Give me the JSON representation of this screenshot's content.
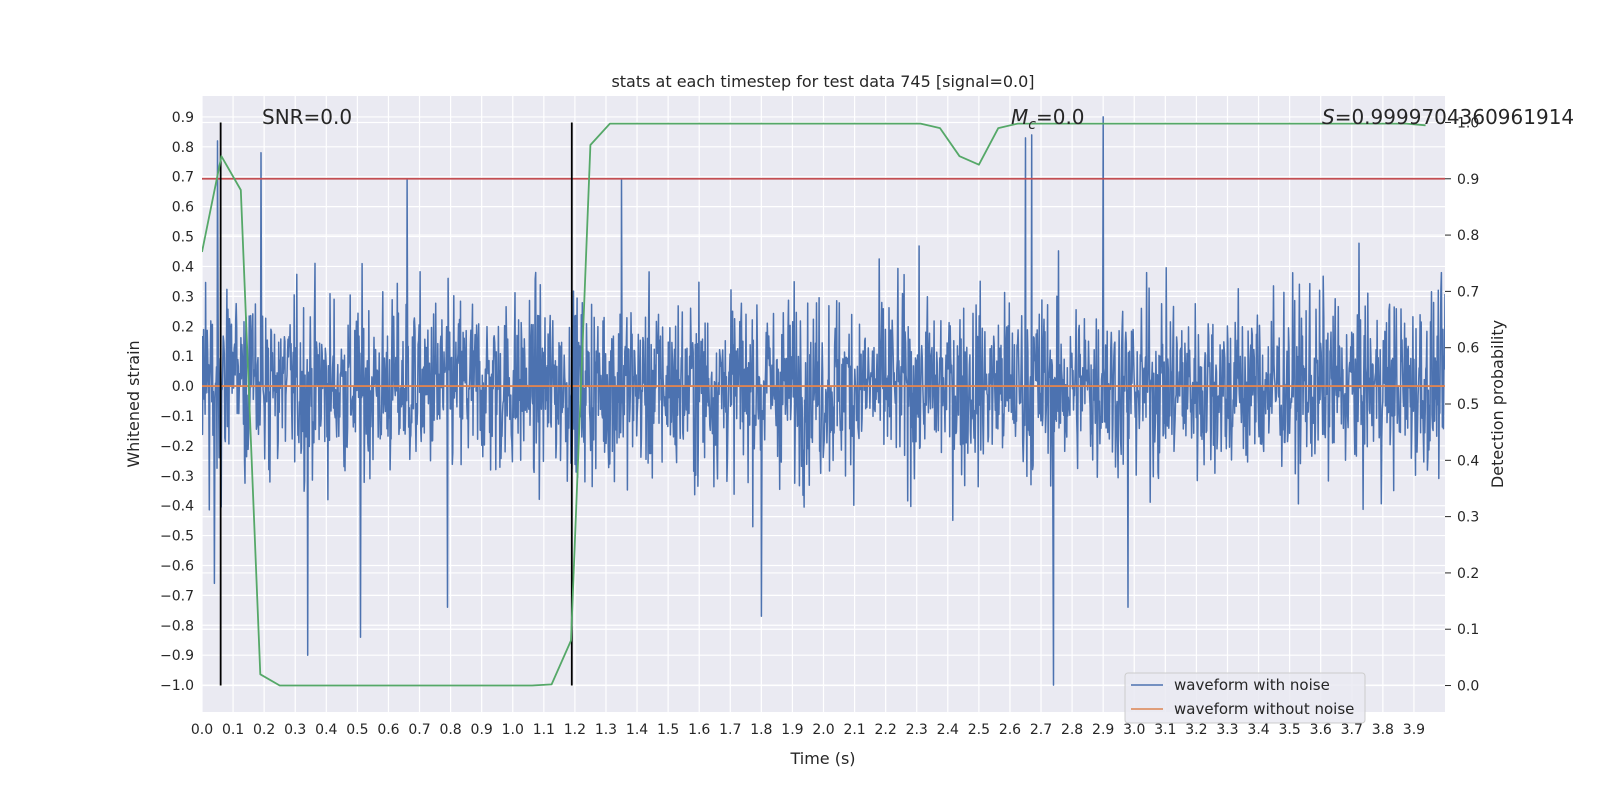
{
  "chart_data": {
    "type": "line",
    "title": "stats at each timestep for test data 745 [signal=0.0]",
    "xlabel": "Time (s)",
    "ylabel": "Whitened strain",
    "y2label": "Detection probability",
    "xlim": [
      0.0,
      4.0
    ],
    "ylim": [
      -1.09,
      0.97
    ],
    "y2lim": [
      -0.047,
      1.047
    ],
    "grid": true,
    "x_ticks": [
      "0.0",
      "0.1",
      "0.2",
      "0.3",
      "0.4",
      "0.5",
      "0.6",
      "0.7",
      "0.8",
      "0.9",
      "1.0",
      "1.1",
      "1.2",
      "1.3",
      "1.4",
      "1.5",
      "1.6",
      "1.7",
      "1.8",
      "1.9",
      "2.0",
      "2.1",
      "2.2",
      "2.3",
      "2.4",
      "2.5",
      "2.6",
      "2.7",
      "2.8",
      "2.9",
      "3.0",
      "3.1",
      "3.2",
      "3.3",
      "3.4",
      "3.5",
      "3.6",
      "3.7",
      "3.8",
      "3.9"
    ],
    "y_ticks": [
      "0.9",
      "0.8",
      "0.7",
      "0.6",
      "0.5",
      "0.4",
      "0.3",
      "0.2",
      "0.1",
      "0.0",
      "−0.1",
      "−0.2",
      "−0.3",
      "−0.4",
      "−0.5",
      "−0.6",
      "−0.7",
      "−0.8",
      "−0.9",
      "−1.0"
    ],
    "y2_ticks": [
      "1.0",
      "0.9",
      "0.8",
      "0.7",
      "0.6",
      "0.5",
      "0.4",
      "0.3",
      "0.2",
      "0.1",
      "0.0"
    ],
    "annotations": {
      "snr": "SNR=0.0",
      "mc_symbol": "M",
      "mc_subscript": "c",
      "mc_value": "=0.0",
      "s_symbol": "S",
      "s_value": "=0.9999704360961914"
    },
    "legend": {
      "placement": "lower-right",
      "entries": [
        {
          "label": "waveform with noise",
          "color": "#4c72b0"
        },
        {
          "label": "waveform without noise",
          "color": "#dd8452"
        }
      ]
    },
    "colors": {
      "noise": "#4c72b0",
      "clean": "#dd8452",
      "probability": "#55a868",
      "threshold": "#c44e52",
      "markers": "#000000",
      "plot_bg": "#eaeaf2"
    },
    "threshold_probability": 0.9,
    "vertical_markers_x": [
      0.06,
      1.19
    ],
    "series": [
      {
        "name": "waveform with noise",
        "noise_sample_range": [
          -1.0,
          0.88
        ],
        "noise_peaks": [
          [
            0.04,
            -0.66
          ],
          [
            0.05,
            0.82
          ],
          [
            0.19,
            0.78
          ],
          [
            0.34,
            -0.9
          ],
          [
            0.51,
            -0.84
          ],
          [
            0.66,
            0.69
          ],
          [
            0.79,
            -0.74
          ],
          [
            1.35,
            0.69
          ],
          [
            1.8,
            -0.77
          ],
          [
            2.65,
            0.83
          ],
          [
            2.67,
            0.84
          ],
          [
            2.74,
            -1.0
          ],
          [
            2.9,
            0.9
          ],
          [
            2.98,
            -0.74
          ]
        ]
      },
      {
        "name": "waveform without noise",
        "x": [
          0.0,
          4.0
        ],
        "y": [
          0.0,
          0.0
        ]
      },
      {
        "name": "Detection probability",
        "x": [
          0.0,
          0.0625,
          0.125,
          0.1875,
          0.25,
          0.3125,
          0.375,
          0.4375,
          0.5,
          0.5625,
          0.625,
          0.6875,
          0.75,
          0.8125,
          0.875,
          0.9375,
          1.0,
          1.0625,
          1.125,
          1.1875,
          1.25,
          1.3125,
          1.375,
          1.4375,
          1.5,
          1.5625,
          1.625,
          1.6875,
          1.75,
          1.8125,
          1.875,
          1.9375,
          2.0,
          2.0625,
          2.125,
          2.1875,
          2.25,
          2.3125,
          2.375,
          2.4375,
          2.5,
          2.5625,
          2.625,
          2.6875,
          2.75,
          2.8125,
          2.875,
          2.9375,
          3.0,
          3.0625,
          3.125,
          3.1875,
          3.25,
          3.3125,
          3.375,
          3.4375,
          3.5,
          3.5625,
          3.625,
          3.6875,
          3.75,
          3.8125,
          3.875,
          3.9375
        ],
        "y": [
          0.77,
          0.94,
          0.88,
          0.02,
          0.0,
          0.0,
          0.0,
          0.0,
          0.0,
          0.0,
          0.0,
          0.0,
          0.0,
          0.0,
          0.0,
          0.0,
          0.0,
          0.0,
          0.002,
          0.08,
          0.96,
          0.998,
          0.998,
          0.998,
          0.998,
          0.998,
          0.998,
          0.998,
          0.998,
          0.998,
          0.998,
          0.998,
          0.998,
          0.998,
          0.998,
          0.998,
          0.998,
          0.998,
          0.99,
          0.94,
          0.925,
          0.99,
          0.998,
          0.998,
          0.998,
          0.998,
          0.998,
          0.998,
          0.998,
          0.998,
          0.998,
          0.998,
          0.998,
          0.998,
          0.998,
          0.998,
          0.998,
          0.998,
          0.998,
          0.998,
          0.998,
          0.998,
          0.998,
          0.995
        ]
      }
    ]
  }
}
